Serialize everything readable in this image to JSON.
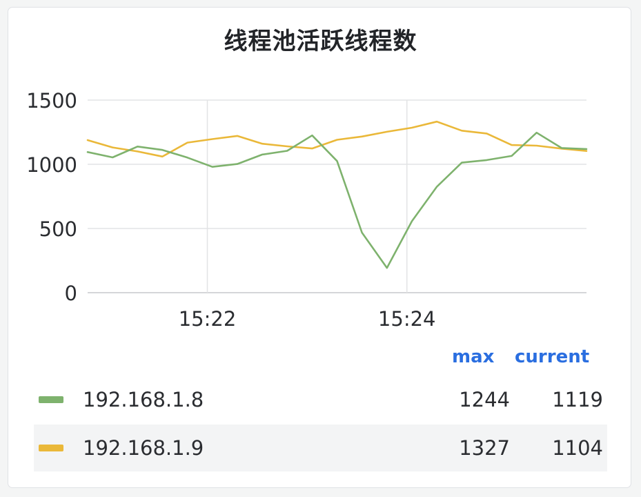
{
  "chart_data": {
    "type": "line",
    "title": "线程池活跃线程数",
    "xlabel": "",
    "ylabel": "",
    "ylim": [
      0,
      1500
    ],
    "yticks": [
      "0",
      "500",
      "1000",
      "1500"
    ],
    "xticks": [
      "15:22",
      "15:24"
    ],
    "grid": true,
    "legend_placement": "bottom",
    "legend_columns": [
      "max",
      "current"
    ],
    "x": [
      "15:20:48",
      "15:21:03",
      "15:21:18",
      "15:21:33",
      "15:21:48",
      "15:22:03",
      "15:22:18",
      "15:22:33",
      "15:22:48",
      "15:23:03",
      "15:23:18",
      "15:23:33",
      "15:23:48",
      "15:24:03",
      "15:24:18",
      "15:24:33",
      "15:24:48",
      "15:25:03",
      "15:25:18",
      "15:25:33",
      "15:25:48"
    ],
    "series": [
      {
        "name": "192.168.1.8",
        "color": "#7eb26d",
        "values": [
          1095,
          1054,
          1138,
          1112,
          1052,
          980,
          1002,
          1076,
          1105,
          1225,
          1025,
          468,
          193,
          557,
          825,
          1013,
          1033,
          1065,
          1246,
          1127,
          1119
        ],
        "max": "1244",
        "current": "1119"
      },
      {
        "name": "192.168.1.9",
        "color": "#eab839",
        "values": [
          1188,
          1131,
          1100,
          1060,
          1169,
          1196,
          1221,
          1160,
          1140,
          1123,
          1191,
          1216,
          1253,
          1285,
          1332,
          1262,
          1240,
          1150,
          1145,
          1122,
          1104
        ],
        "max": "1327",
        "current": "1104"
      }
    ]
  }
}
